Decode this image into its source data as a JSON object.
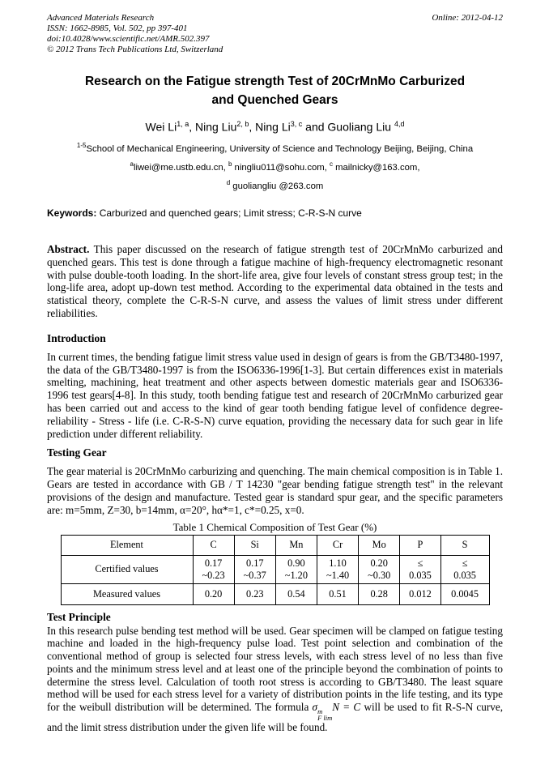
{
  "header": {
    "journal": "Advanced Materials Research",
    "issn_line": "ISSN: 1662-8985, Vol. 502, pp 397-401",
    "doi_line": "doi:10.4028/www.scientific.net/AMR.502.397",
    "copyright_line": "© 2012 Trans Tech Publications Ltd, Switzerland",
    "online_date": "Online: 2012-04-12"
  },
  "title": "Research on the Fatigue strength Test of 20CrMnMo Carburized and Quenched Gears",
  "authors": {
    "a1_name": "Wei Li",
    "a1_sup": "1, a",
    "sep1": ", ",
    "a2_name": "Ning Liu",
    "a2_sup": "2, b",
    "sep2": ", ",
    "a3_name": "Ning Li",
    "a3_sup": "3, c",
    "sep3": " and ",
    "a4_name": "Guoliang Liu ",
    "a4_sup": "4,d"
  },
  "affiliation": {
    "sup": "1-5",
    "text": "School of Mechanical Engineering, University of Science and Technology Beijing, Beijing, China"
  },
  "emails": {
    "sup_a": "a",
    "email_a": "liwei@me.ustb.edu.cn, ",
    "sup_b": "b",
    "email_b": " ningliu011@sohu.com, ",
    "sup_c": "c",
    "email_c": " mailnicky@163.com,",
    "sup_d": "d",
    "email_d": " guoliangliu @263.com"
  },
  "keywords": {
    "label": "Keywords:",
    "text": " Carburized and quenched gears;  Limit stress; C-R-S-N curve"
  },
  "abstract": {
    "label": "Abstract.",
    "text": " This paper discussed on the research of fatigue strength test of 20CrMnMo carburized and quenched gears. This test is done through a fatigue machine of high-frequency electromagnetic resonant with pulse double-tooth loading. In the short-life area, give four levels of constant stress group test; in the long-life area, adopt up-down test method. According to the experimental data obtained in the tests and statistical theory, complete the C-R-S-N curve, and assess the values of limit stress under different reliabilities."
  },
  "introduction": {
    "heading": "Introduction",
    "body": "In current times, the bending fatigue limit stress value used in design of gears is from the GB/T3480-1997, the data of the GB/T3480-1997 is from the ISO6336-1996[1-3]. But certain differences exist in materials smelting, machining, heat treatment and other aspects between domestic materials gear and ISO6336-1996 test gears[4-8]. In this study, tooth bending fatigue test and research of 20CrMnMo carburized gear has been carried out and access to the kind of gear tooth bending fatigue level of confidence degree- reliability - Stress - life (i.e. C-R-S-N) curve equation, providing the necessary data for such gear in life prediction under different reliability."
  },
  "testing_gear": {
    "heading": "Testing Gear",
    "body": "The gear material is 20CrMnMo carburizing and quenching. The main chemical composition is in Table 1. Gears are tested in accordance with GB / T 14230 \"gear bending fatigue strength test\" in the relevant provisions of the design and manufacture. Tested gear is standard spur gear, and the specific parameters are: m=5mm, Z=30, b=14mm, α=20°, hα*=1, c*=0.25, x=0."
  },
  "table": {
    "caption": "Table 1 Chemical Composition of Test Gear (%)",
    "headers": [
      "Element",
      "C",
      "Si",
      "Mn",
      "Cr",
      "Mo",
      "P",
      "S"
    ],
    "certified": {
      "label": "Certified values",
      "c": [
        "0.17",
        "~0.23"
      ],
      "si": [
        "0.17",
        "~0.37"
      ],
      "mn": [
        "0.90",
        "~1.20"
      ],
      "cr": [
        "1.10",
        "~1.40"
      ],
      "mo": [
        "0.20",
        "~0.30"
      ],
      "p": [
        "≤",
        "0.035"
      ],
      "s": [
        "≤",
        "0.035"
      ]
    },
    "measured": {
      "label": "Measured values",
      "values": [
        "0.20",
        "0.23",
        "0.54",
        "0.51",
        "0.28",
        "0.012",
        "0.0045"
      ]
    }
  },
  "test_principle": {
    "heading": "Test Principle",
    "body_before": "In this research pulse bending test method will be used. Gear specimen will be clamped on fatigue testing machine and loaded in the high-frequency pulse load. Test point selection and combination of the conventional method of group is selected four stress levels, with each stress level of no less than five points and the minimum stress level and at least one of the principle beyond the combination of points to determine the stress level. Calculation of tooth root stress is according to GB/T3480. The least square method will be used for each stress level for a variety of distribution points in the life testing, and its type for the weibull distribution will be determined. The formula ",
    "formula": {
      "sigma": "σ",
      "sup": "m",
      "sub": "F lim",
      "var": "N",
      "eq": " = ",
      "const": "C"
    },
    "body_after": "  will be used to fit R-S-N curve, and the limit stress distribution under the given life will be found."
  }
}
